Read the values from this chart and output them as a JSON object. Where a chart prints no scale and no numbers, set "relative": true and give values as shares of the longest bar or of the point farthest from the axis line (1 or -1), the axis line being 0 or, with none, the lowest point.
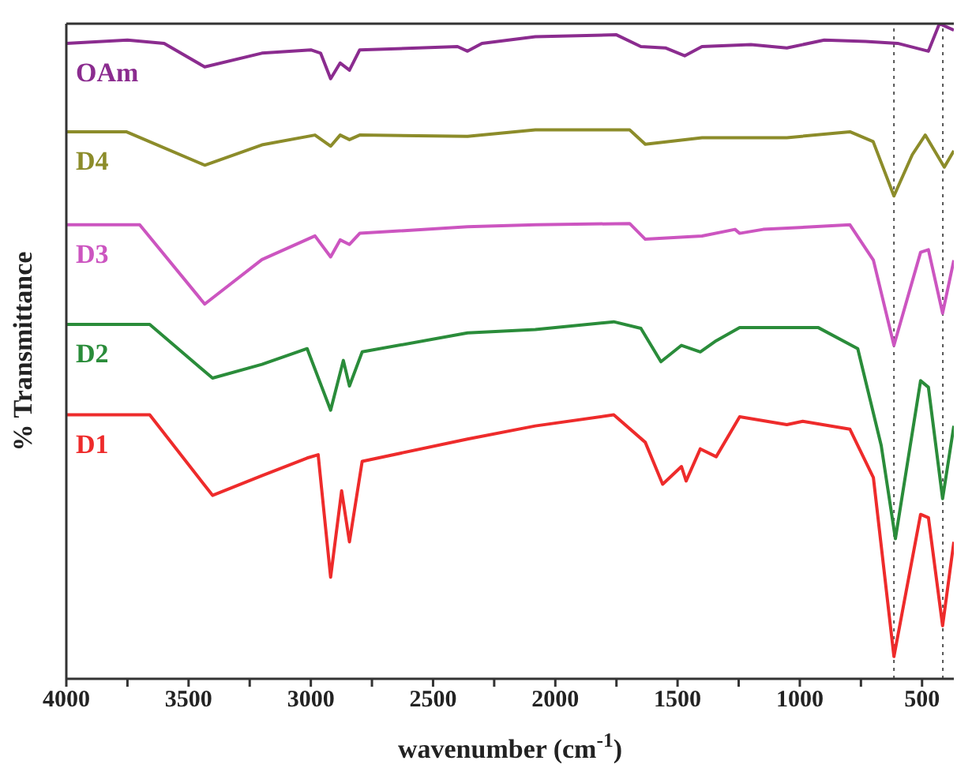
{
  "chart_data": {
    "type": "line",
    "relative": true,
    "xlabel": "wavenumber (cm$^{-1}$)",
    "ylabel": "% Transmittance",
    "xlim": [
      4000,
      370
    ],
    "xticks": [
      4000,
      {
        "value": 3750,
        "label": null
      },
      3500,
      {
        "value": 3250,
        "label": null
      },
      3000,
      {
        "value": 2750,
        "label": null
      },
      2500,
      {
        "value": 2250,
        "label": null
      },
      2000,
      {
        "value": 1750,
        "label": null
      },
      1500,
      {
        "value": 1250,
        "label": null
      },
      1000,
      {
        "value": 750,
        "label": null
      },
      500
    ],
    "ref_lines": [
      {
        "axis": "x",
        "value": 615,
        "color": "#555555",
        "line_style": "dotted"
      },
      {
        "axis": "x",
        "value": 415,
        "color": "#555555",
        "line_style": "dotted"
      }
    ],
    "series": [
      {
        "name": "OAm",
        "color": "#8b2c8f",
        "x": [
          4000,
          3750,
          3600,
          3434,
          3200,
          3000,
          2960,
          2919,
          2880,
          2842,
          2800,
          2400,
          2359,
          2300,
          2082,
          1750,
          1650,
          1550,
          1471,
          1400,
          1200,
          1053,
          900,
          731,
          600,
          474,
          429,
          370
        ],
        "values": [
          0.97,
          0.975,
          0.97,
          0.934,
          0.955,
          0.96,
          0.955,
          0.916,
          0.94,
          0.929,
          0.96,
          0.965,
          0.958,
          0.97,
          0.98,
          0.983,
          0.965,
          0.963,
          0.951,
          0.965,
          0.968,
          0.963,
          0.975,
          0.973,
          0.97,
          0.958,
          1.0,
          0.99
        ]
      },
      {
        "name": "D4",
        "color": "#8c8c2a",
        "x": [
          4000,
          3755,
          3434,
          3200,
          2983,
          2919,
          2880,
          2842,
          2800,
          2359,
          2082,
          1696,
          1632,
          1400,
          1053,
          795,
          700,
          615,
          540,
          487,
          409,
          370
        ],
        "values": [
          0.835,
          0.835,
          0.784,
          0.815,
          0.83,
          0.813,
          0.83,
          0.823,
          0.83,
          0.828,
          0.838,
          0.838,
          0.816,
          0.826,
          0.826,
          0.835,
          0.82,
          0.737,
          0.8,
          0.83,
          0.781,
          0.806
        ]
      },
      {
        "name": "D3",
        "color": "#cc55c0",
        "x": [
          4000,
          3700,
          3434,
          3200,
          2983,
          2919,
          2880,
          2842,
          2800,
          2359,
          2082,
          1696,
          1632,
          1400,
          1265,
          1246,
          1150,
          795,
          699,
          615,
          506,
          474,
          416,
          370
        ],
        "values": [
          0.693,
          0.693,
          0.572,
          0.64,
          0.676,
          0.644,
          0.67,
          0.663,
          0.68,
          0.69,
          0.693,
          0.695,
          0.671,
          0.676,
          0.686,
          0.68,
          0.686,
          0.693,
          0.639,
          0.509,
          0.651,
          0.655,
          0.558,
          0.639
        ]
      },
      {
        "name": "D2",
        "color": "#2a8c3a",
        "x": [
          4000,
          3659,
          3402,
          3200,
          3015,
          2919,
          2867,
          2842,
          2790,
          2359,
          2082,
          1761,
          1650,
          1568,
          1484,
          1407,
          1342,
          1246,
          924,
          763,
          667,
          609,
          506,
          474,
          416,
          370
        ],
        "values": [
          0.541,
          0.541,
          0.459,
          0.48,
          0.504,
          0.41,
          0.486,
          0.447,
          0.499,
          0.528,
          0.533,
          0.545,
          0.535,
          0.484,
          0.509,
          0.499,
          0.516,
          0.536,
          0.536,
          0.504,
          0.356,
          0.214,
          0.455,
          0.445,
          0.275,
          0.386
        ]
      },
      {
        "name": "D1",
        "color": "#ee2b2b",
        "x": [
          4000,
          3659,
          3402,
          3200,
          3015,
          2970,
          2919,
          2874,
          2842,
          2790,
          2359,
          2082,
          1761,
          1632,
          1561,
          1484,
          1465,
          1407,
          1342,
          1246,
          1053,
          988,
          795,
          699,
          615,
          506,
          474,
          416,
          370
        ],
        "values": [
          0.403,
          0.403,
          0.28,
          0.31,
          0.337,
          0.342,
          0.155,
          0.287,
          0.209,
          0.332,
          0.366,
          0.386,
          0.403,
          0.361,
          0.297,
          0.324,
          0.302,
          0.351,
          0.339,
          0.4,
          0.388,
          0.393,
          0.381,
          0.307,
          0.034,
          0.251,
          0.246,
          0.081,
          0.209
        ]
      }
    ]
  }
}
